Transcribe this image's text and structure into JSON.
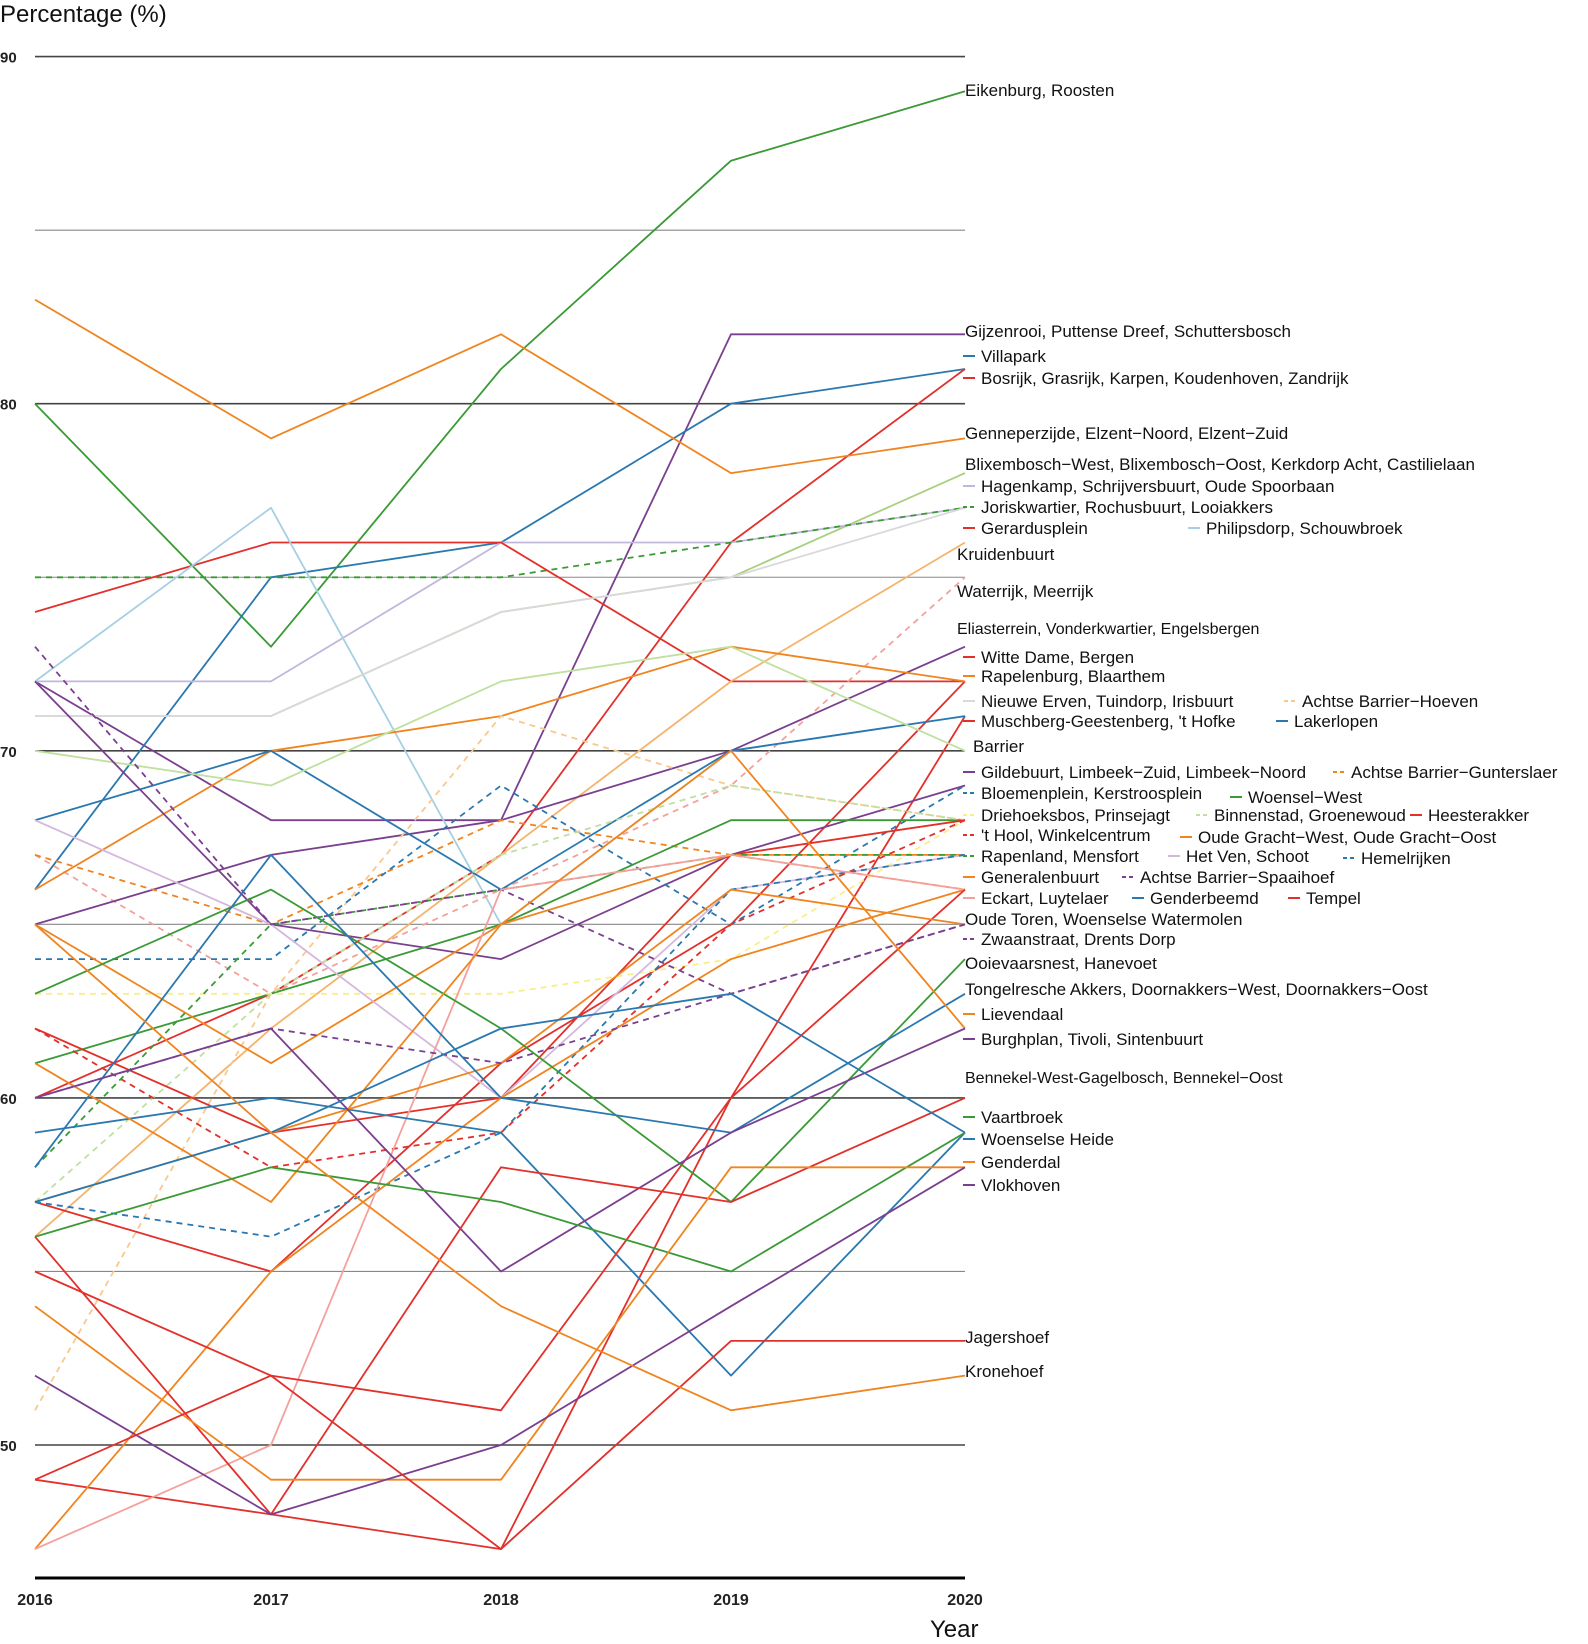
{
  "chart_data": {
    "type": "line",
    "xlabel": "Year",
    "ylabel": "Percentage (%)",
    "x": [
      2016,
      2017,
      2018,
      2019,
      2020
    ],
    "xtick_labels": [
      "2016",
      "2017",
      "2018",
      "2019",
      "2020"
    ],
    "ylim": [
      46,
      90
    ],
    "yticks": [
      90,
      80,
      70,
      60,
      50
    ],
    "ytick_labels": [
      "90",
      "80",
      "70",
      "60",
      "50"
    ],
    "gridlines": [
      50,
      55,
      60,
      65,
      70,
      75,
      80,
      85,
      90
    ],
    "legend": "direct labels at right end of lines",
    "series": [
      {
        "name": "Eikenburg, Roosten",
        "color": "#3a9a35",
        "dash": false,
        "values": [
          80,
          73,
          81,
          87,
          89
        ]
      },
      {
        "name": "Gijzenrooi, Puttense Dreef, Schuttersbosch",
        "color": "#7a3f8f",
        "dash": false,
        "values": [
          72,
          68,
          68,
          82,
          82
        ]
      },
      {
        "name": "Villapark",
        "color": "#2a78b0",
        "dash": false,
        "values": [
          66,
          75,
          76,
          80,
          81
        ]
      },
      {
        "name": "Bosrijk, Grasrijk, Karpen, Koudenhoven, Zandrijk",
        "color": "#e2302b",
        "dash": false,
        "values": [
          60,
          63,
          67,
          76,
          81
        ]
      },
      {
        "name": "Genneperzijde, Elzent−Noord, Elzent−Zuid",
        "color": "#f0841f",
        "dash": false,
        "values": [
          83,
          79,
          82,
          78,
          79
        ]
      },
      {
        "name": "Blixembosch−West, Blixembosch−Oost, Kerkdorp Acht, Castilielaan",
        "color": "#a8cf7c",
        "dash": false,
        "values": [
          71,
          71,
          74,
          75,
          78
        ]
      },
      {
        "name": "Hagenkamp, Schrijversbuurt, Oude Spoorbaan",
        "color": "#c2b6dc",
        "dash": false,
        "values": [
          72,
          72,
          76,
          76,
          77
        ]
      },
      {
        "name": "Joriskwartier, Rochusbuurt, Looiakkers",
        "color": "#3a9a35",
        "dash": true,
        "values": [
          75,
          75,
          75,
          76,
          77
        ]
      },
      {
        "name": "Gerardusplein",
        "color": "#e2302b",
        "dash": false,
        "values": [
          74,
          76,
          76,
          72,
          72
        ]
      },
      {
        "name": "Philipsdorp, Schouwbroek",
        "color": "#a6cfe4",
        "dash": false,
        "values": [
          72,
          77,
          65,
          70,
          71
        ]
      },
      {
        "name": "Kruidenbuurt",
        "color": "#f5b36b",
        "dash": false,
        "values": [
          56,
          62,
          67,
          72,
          76
        ]
      },
      {
        "name": "Waterrijk, Meerrijk",
        "color": "#f4a09b",
        "dash": true,
        "values": [
          67,
          63,
          66,
          69,
          75
        ]
      },
      {
        "name": "Eliasterrein, Vonderkwartier, Engelsbergen",
        "color": "#7a3f8f",
        "dash": false,
        "values": [
          65,
          67,
          68,
          70,
          73
        ]
      },
      {
        "name": "Witte Dame, Bergen",
        "color": "#e2302b",
        "dash": false,
        "values": [
          57,
          55,
          61,
          65,
          72
        ]
      },
      {
        "name": "Rapelenburg, Blaarthem",
        "color": "#f0841f",
        "dash": false,
        "values": [
          66,
          70,
          71,
          73,
          72
        ]
      },
      {
        "name": "Nieuwe Erven, Tuindorp, Irisbuurt",
        "color": "#d9d9d9",
        "dash": false,
        "values": [
          71,
          71,
          74,
          75,
          77
        ]
      },
      {
        "name": "Achtse Barrier−Hoeven",
        "color": "#f9c88f",
        "dash": true,
        "values": [
          51,
          63,
          71,
          69,
          68
        ]
      },
      {
        "name": "Muschberg-Geestenberg, 't Hofke",
        "color": "#e2302b",
        "dash": false,
        "values": [
          49,
          48,
          47,
          60,
          71
        ]
      },
      {
        "name": "Lakerlopen",
        "color": "#2a78b0",
        "dash": false,
        "values": [
          68,
          70,
          66,
          70,
          71
        ]
      },
      {
        "name": "Barrier",
        "color": "#bfe09f",
        "dash": false,
        "values": [
          70,
          69,
          72,
          73,
          70
        ]
      },
      {
        "name": "Gildebuurt, Limbeek−Zuid, Limbeek−Noord",
        "color": "#7a3f8f",
        "dash": false,
        "values": [
          72,
          65,
          64,
          67,
          69
        ]
      },
      {
        "name": "Achtse Barrier−Gunterslaer",
        "color": "#f0841f",
        "dash": true,
        "values": [
          67,
          65,
          68,
          67,
          66
        ]
      },
      {
        "name": "Bloemenplein, Kerstroosplein",
        "color": "#2a78b0",
        "dash": true,
        "values": [
          64,
          64,
          69,
          65,
          69
        ]
      },
      {
        "name": "Woensel−West",
        "color": "#3a9a35",
        "dash": false,
        "values": [
          61,
          63,
          65,
          68,
          68
        ]
      },
      {
        "name": "Driehoeksbos, Prinsejagt",
        "color": "#f8ef8a",
        "dash": true,
        "values": [
          63,
          63,
          63,
          64,
          68
        ]
      },
      {
        "name": "Binnenstad, Groenewoud",
        "color": "#bfe09f",
        "dash": true,
        "values": [
          57,
          63,
          67,
          69,
          68
        ]
      },
      {
        "name": "Heesterakker",
        "color": "#e2302b",
        "dash": false,
        "values": [
          62,
          59,
          60,
          67,
          68
        ]
      },
      {
        "name": "'t Hool, Winkelcentrum",
        "color": "#e2302b",
        "dash": true,
        "values": [
          62,
          58,
          59,
          65,
          68
        ]
      },
      {
        "name": "Oude Gracht−West, Oude Gracht−Oost",
        "color": "#f0841f",
        "dash": false,
        "values": [
          65,
          61,
          65,
          67,
          67
        ]
      },
      {
        "name": "Rapenland, Mensfort",
        "color": "#3a9a35",
        "dash": true,
        "values": [
          58,
          65,
          66,
          67,
          67
        ]
      },
      {
        "name": "Het Ven, Schoot",
        "color": "#d4b8dc",
        "dash": false,
        "values": [
          68,
          65,
          60,
          66,
          67
        ]
      },
      {
        "name": "Hemelrijken",
        "color": "#2a78b0",
        "dash": true,
        "values": [
          57,
          56,
          59,
          66,
          67
        ]
      },
      {
        "name": "Generalenbuurt",
        "color": "#f0841f",
        "dash": false,
        "values": [
          47,
          55,
          60,
          64,
          66
        ]
      },
      {
        "name": "Achtse Barrier−Spaaihoef",
        "color": "#7a3f8f",
        "dash": true,
        "values": [
          73,
          65,
          66,
          63,
          65
        ]
      },
      {
        "name": "Eckart, Luytelaer",
        "color": "#f4a09b",
        "dash": false,
        "values": [
          47,
          50,
          66,
          67,
          66
        ]
      },
      {
        "name": "Genderbeemd",
        "color": "#2a78b0",
        "dash": false,
        "values": [
          59,
          60,
          59,
          52,
          59
        ]
      },
      {
        "name": "Tempel",
        "color": "#e2302b",
        "dash": false,
        "values": [
          55,
          52,
          51,
          60,
          66
        ]
      },
      {
        "name": "Oude Toren, Woenselse Watermolen",
        "color": "#f0841f",
        "dash": false,
        "values": [
          57,
          59,
          61,
          66,
          65
        ]
      },
      {
        "name": "Zwaanstraat, Drents Dorp",
        "color": "#7a3f8f",
        "dash": true,
        "values": [
          60,
          62,
          61,
          63,
          65
        ]
      },
      {
        "name": "Ooievaarsnest, Hanevoet",
        "color": "#3a9a35",
        "dash": false,
        "values": [
          63,
          66,
          62,
          57,
          64
        ]
      },
      {
        "name": "Tongelresche Akkers, Doornakkers−West, Doornakkers−Oost",
        "color": "#2a78b0",
        "dash": false,
        "values": [
          58,
          67,
          60,
          59,
          63
        ]
      },
      {
        "name": "Lievendaal",
        "color": "#f0841f",
        "dash": false,
        "values": [
          61,
          57,
          65,
          70,
          62
        ]
      },
      {
        "name": "Burghplan, Tivoli, Sintenbuurt",
        "color": "#7a3f8f",
        "dash": false,
        "values": [
          60,
          62,
          55,
          59,
          62
        ]
      },
      {
        "name": "Bennekel-West-Gagelbosch, Bennekel−Oost",
        "color": "#e2302b",
        "dash": false,
        "values": [
          56,
          48,
          58,
          57,
          60
        ]
      },
      {
        "name": "Vaartbroek",
        "color": "#3a9a35",
        "dash": false,
        "values": [
          56,
          58,
          57,
          55,
          59
        ]
      },
      {
        "name": "Woenselse Heide",
        "color": "#2a78b0",
        "dash": false,
        "values": [
          57,
          59,
          62,
          63,
          59
        ]
      },
      {
        "name": "Genderdal",
        "color": "#f0841f",
        "dash": false,
        "values": [
          54,
          49,
          49,
          58,
          58
        ]
      },
      {
        "name": "Vlokhoven",
        "color": "#7a3f8f",
        "dash": false,
        "values": [
          52,
          48,
          50,
          54,
          58
        ]
      },
      {
        "name": "Jagershoef",
        "color": "#e2302b",
        "dash": false,
        "values": [
          49,
          52,
          47,
          53,
          53
        ]
      },
      {
        "name": "Kronehoef",
        "color": "#f0841f",
        "dash": false,
        "values": [
          65,
          59,
          54,
          51,
          52
        ]
      }
    ]
  }
}
